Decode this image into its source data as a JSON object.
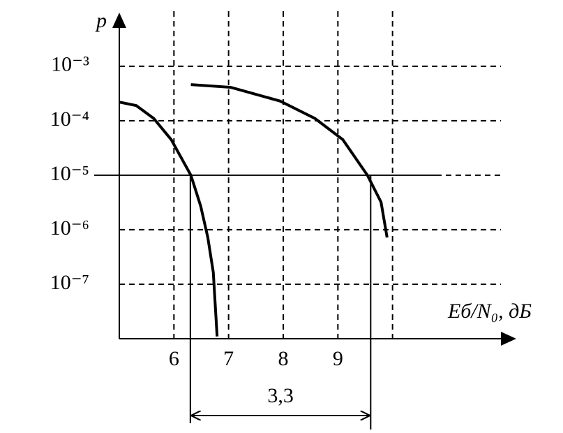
{
  "chart_data": {
    "type": "line",
    "x_label": "Eб/N₀, дБ",
    "y_label": "p",
    "xlim": [
      5,
      12.2
    ],
    "ylim": [
      1e-08,
      0.0091
    ],
    "log_y": true,
    "xticks": [
      6,
      7,
      8,
      9
    ],
    "xgrid": [
      6,
      7,
      8,
      9,
      10
    ],
    "yticks": [
      {
        "value": 0.001,
        "label": "10⁻³"
      },
      {
        "value": 0.0001,
        "label": "10⁻⁴"
      },
      {
        "value": 1e-05,
        "label": "10⁻⁵"
      },
      {
        "value": 1e-06,
        "label": "10⁻⁶"
      },
      {
        "value": 1e-07,
        "label": "10⁻⁷"
      }
    ],
    "grid": true,
    "threshold": 1e-05,
    "series": [
      {
        "color": "#000000",
        "x": [
          5.0,
          5.31,
          5.63,
          5.95,
          6.31,
          6.49,
          6.62,
          6.72,
          6.79
        ],
        "values": [
          0.00022,
          0.00019,
          0.00011,
          4.5e-05,
          1e-05,
          2.7e-06,
          7.2e-07,
          1.65e-07,
          1.1e-08
        ]
      },
      {
        "color": "#000000",
        "x": [
          6.31,
          7.04,
          7.94,
          8.58,
          9.09,
          9.54,
          9.79,
          9.9
        ],
        "values": [
          0.00046,
          0.00041,
          0.00023,
          0.00011,
          4.5e-05,
          1e-05,
          3.2e-06,
          7.2e-07
        ]
      }
    ],
    "annotation": {
      "text": "3,3",
      "x1": 6.3,
      "x2": 9.6
    }
  }
}
